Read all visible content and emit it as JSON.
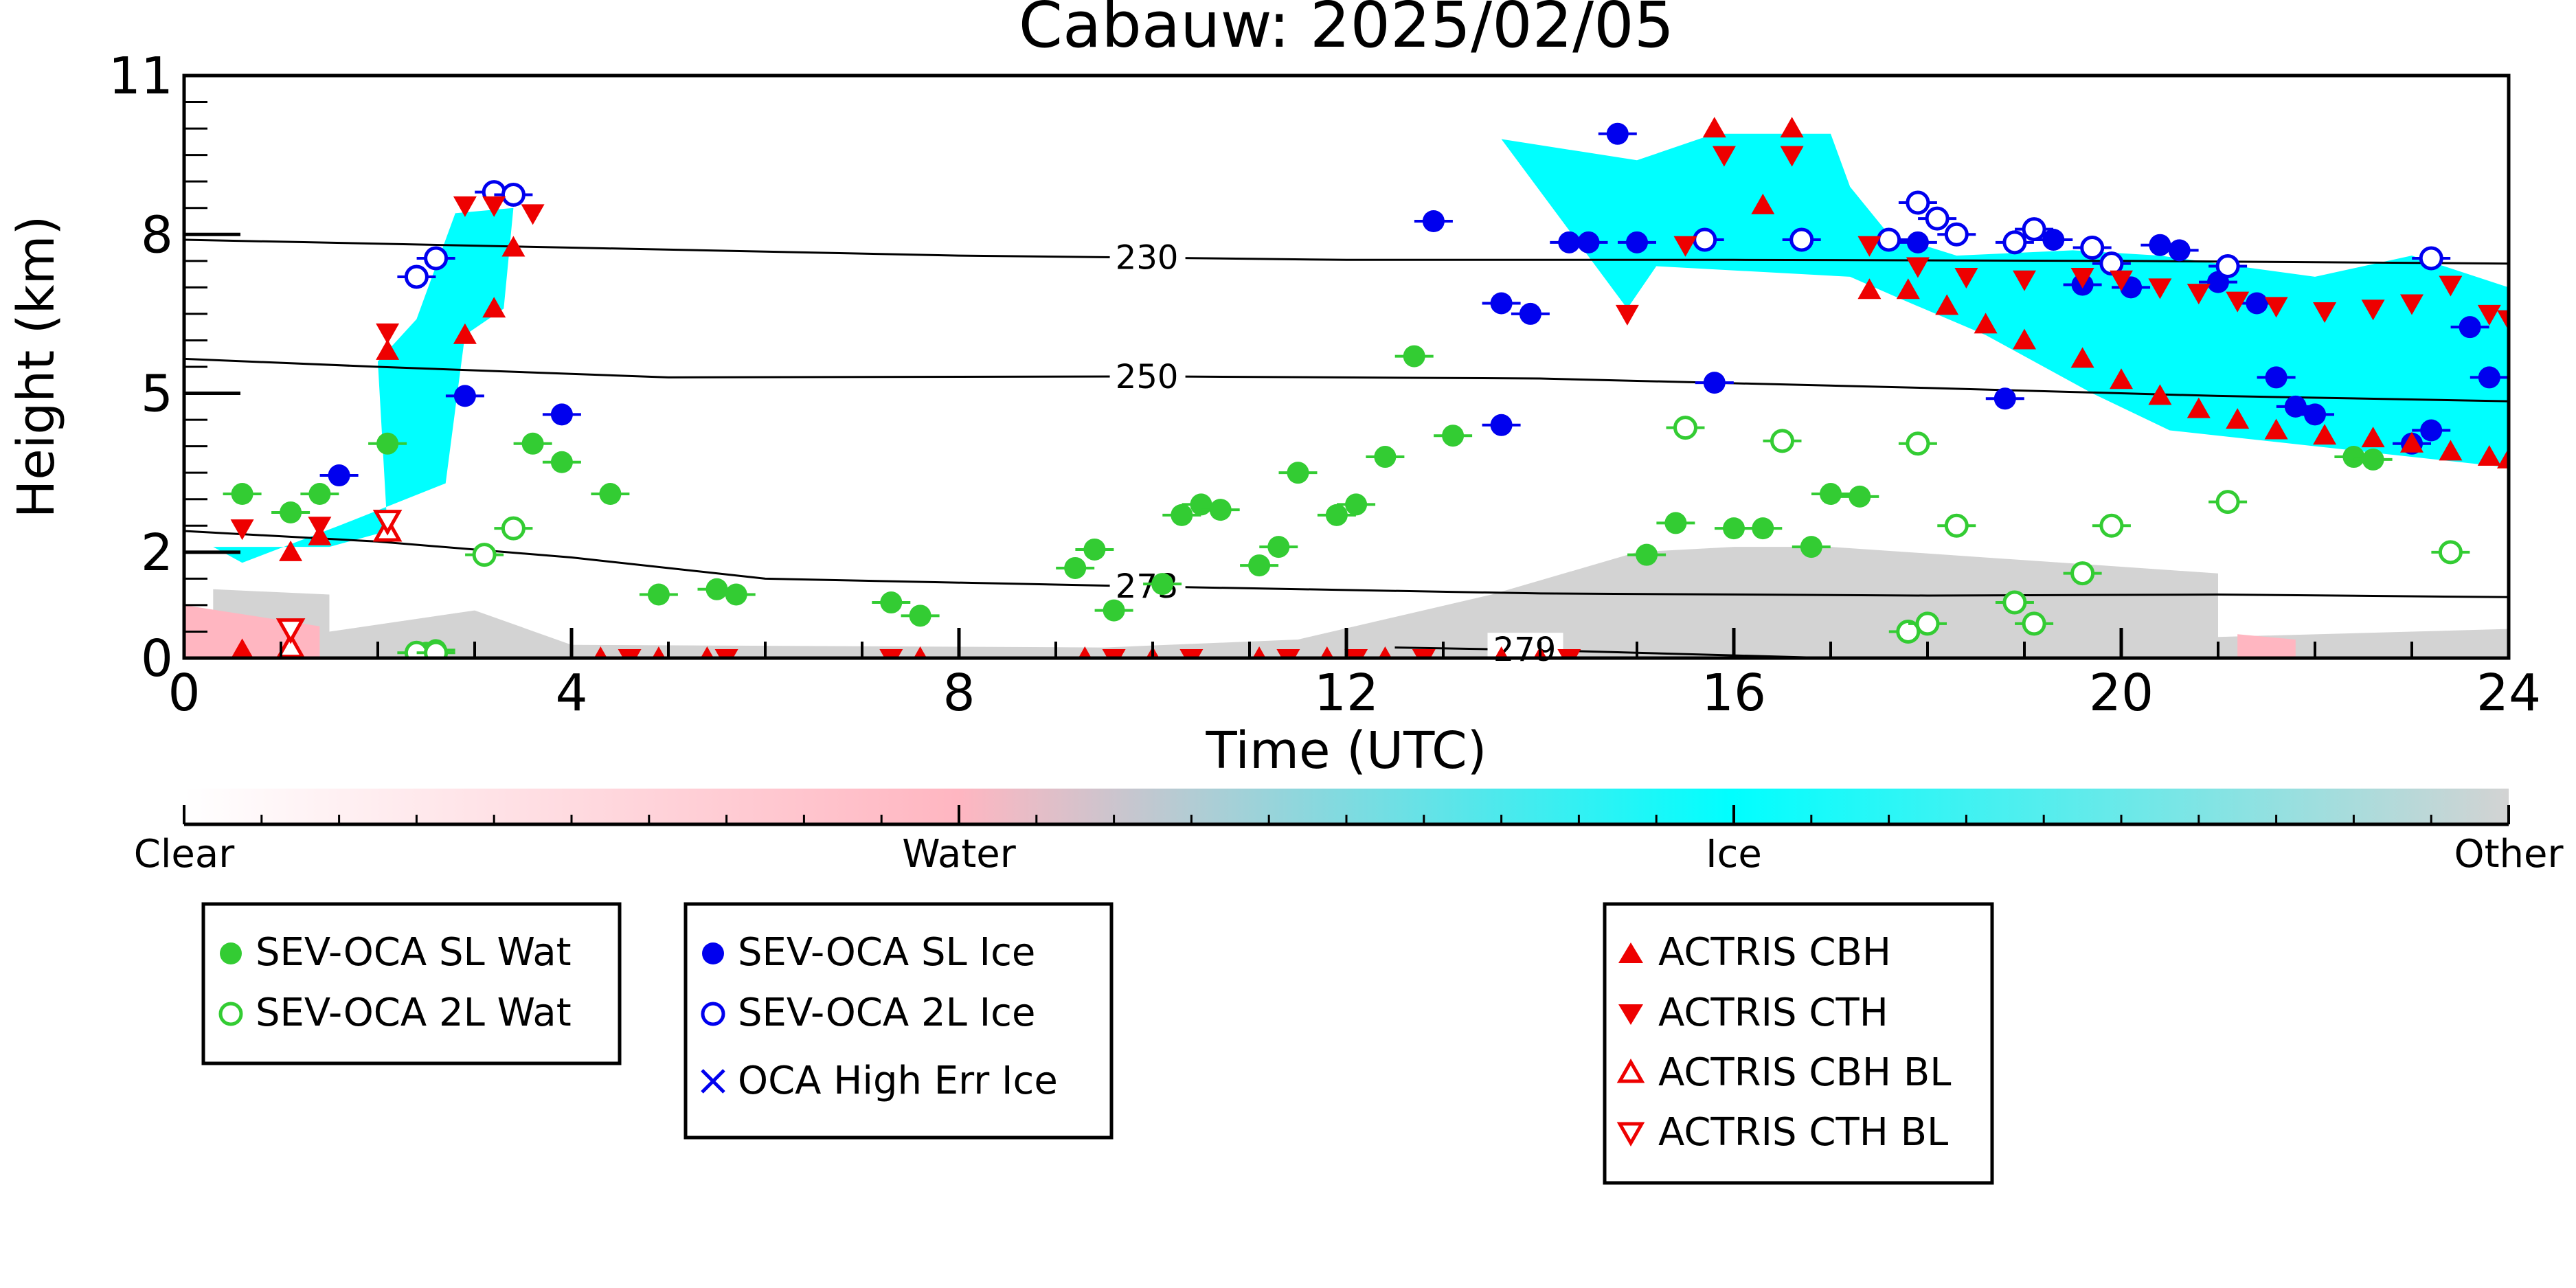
{
  "chart_data": {
    "type": "scatter",
    "title": "Cabauw: 2025/02/05",
    "xlabel": "Time (UTC)",
    "ylabel": "Height (km)",
    "xlim": [
      0,
      24
    ],
    "ylim": [
      0,
      11
    ],
    "x_ticks": [
      0,
      4,
      8,
      12,
      16,
      20,
      24
    ],
    "y_ticks": [
      0,
      2,
      5,
      8,
      11
    ],
    "grid": false,
    "legend_position": "bottom",
    "colorbar": {
      "labels": [
        "Clear",
        "Water",
        "Ice",
        "Other"
      ],
      "colors": [
        "#ffffff",
        "#ffb6c1",
        "#00ffff",
        "#d3d3d3"
      ]
    },
    "contours": [
      {
        "label": "230",
        "label_x": 9.6,
        "points": [
          [
            0,
            7.9
          ],
          [
            4,
            7.75
          ],
          [
            8,
            7.6
          ],
          [
            12,
            7.52
          ],
          [
            16,
            7.52
          ],
          [
            20,
            7.5
          ],
          [
            24,
            7.45
          ]
        ]
      },
      {
        "label": "250",
        "label_x": 9.6,
        "points": [
          [
            0,
            5.65
          ],
          [
            2,
            5.5
          ],
          [
            5,
            5.3
          ],
          [
            10,
            5.32
          ],
          [
            14,
            5.28
          ],
          [
            18,
            5.1
          ],
          [
            21,
            4.95
          ],
          [
            24,
            4.85
          ]
        ]
      },
      {
        "label": "273",
        "label_x": 9.6,
        "points": [
          [
            0,
            2.4
          ],
          [
            2,
            2.2
          ],
          [
            4,
            1.9
          ],
          [
            6,
            1.5
          ],
          [
            10,
            1.35
          ],
          [
            14,
            1.22
          ],
          [
            18,
            1.18
          ],
          [
            21,
            1.2
          ],
          [
            24,
            1.15
          ]
        ]
      },
      {
        "label": "279",
        "label_x": 13.5,
        "points": [
          [
            12.5,
            0.2
          ],
          [
            14,
            0.15
          ],
          [
            16,
            0.05
          ],
          [
            17,
            0
          ]
        ]
      }
    ],
    "series": [
      {
        "name": "SEV-OCA SL Wat",
        "marker": "circle-filled",
        "color": "#33cc33",
        "points": [
          [
            0.6,
            3.1
          ],
          [
            1.1,
            2.75
          ],
          [
            1.4,
            3.1
          ],
          [
            2.1,
            4.05
          ],
          [
            2.5,
            0.1
          ],
          [
            2.6,
            0.15
          ],
          [
            3.6,
            4.05
          ],
          [
            3.9,
            3.7
          ],
          [
            4.4,
            3.1
          ],
          [
            4.9,
            1.2
          ],
          [
            5.5,
            1.3
          ],
          [
            5.7,
            1.2
          ],
          [
            7.3,
            1.05
          ],
          [
            7.6,
            0.8
          ],
          [
            9.2,
            1.7
          ],
          [
            9.4,
            2.05
          ],
          [
            9.6,
            0.9
          ],
          [
            10.1,
            1.4
          ],
          [
            10.3,
            2.7
          ],
          [
            10.5,
            2.9
          ],
          [
            10.7,
            2.8
          ],
          [
            11.1,
            1.75
          ],
          [
            11.3,
            2.1
          ],
          [
            11.5,
            3.5
          ],
          [
            11.9,
            2.7
          ],
          [
            12.1,
            2.9
          ],
          [
            12.4,
            3.8
          ],
          [
            12.7,
            5.7
          ],
          [
            13.1,
            4.2
          ],
          [
            15.1,
            1.95
          ],
          [
            15.4,
            2.55
          ],
          [
            16.0,
            2.45
          ],
          [
            16.3,
            2.45
          ],
          [
            16.8,
            2.1
          ],
          [
            17.0,
            3.1
          ],
          [
            17.3,
            3.05
          ],
          [
            22.4,
            3.8
          ],
          [
            22.6,
            3.75
          ]
        ]
      },
      {
        "name": "SEV-OCA 2L Wat",
        "marker": "circle-open",
        "color": "#33cc33",
        "points": [
          [
            2.4,
            0.1
          ],
          [
            2.6,
            0.1
          ],
          [
            3.1,
            1.95
          ],
          [
            3.4,
            2.45
          ],
          [
            15.5,
            4.35
          ],
          [
            16.5,
            4.1
          ],
          [
            17.9,
            4.05
          ],
          [
            17.8,
            0.5
          ],
          [
            18.0,
            0.65
          ],
          [
            18.3,
            2.5
          ],
          [
            18.9,
            1.05
          ],
          [
            19.1,
            0.65
          ],
          [
            19.6,
            1.6
          ],
          [
            19.9,
            2.5
          ],
          [
            21.1,
            2.95
          ],
          [
            23.4,
            2.0
          ]
        ]
      },
      {
        "name": "SEV-OCA SL Ice",
        "marker": "circle-filled",
        "color": "#0000ee",
        "points": [
          [
            1.6,
            3.45
          ],
          [
            2.9,
            4.95
          ],
          [
            3.9,
            4.6
          ],
          [
            12.9,
            8.25
          ],
          [
            13.6,
            4.4
          ],
          [
            13.6,
            6.7
          ],
          [
            13.9,
            6.5
          ],
          [
            14.3,
            7.85
          ],
          [
            14.5,
            7.85
          ],
          [
            14.8,
            9.9
          ],
          [
            15.0,
            7.85
          ],
          [
            15.8,
            5.2
          ],
          [
            17.9,
            7.85
          ],
          [
            18.8,
            4.9
          ],
          [
            19.3,
            7.9
          ],
          [
            19.6,
            7.05
          ],
          [
            20.1,
            7.0
          ],
          [
            20.4,
            7.8
          ],
          [
            20.6,
            7.7
          ],
          [
            21.0,
            7.1
          ],
          [
            21.4,
            6.7
          ],
          [
            21.6,
            5.3
          ],
          [
            21.8,
            4.75
          ],
          [
            22.0,
            4.6
          ],
          [
            23.0,
            4.05
          ],
          [
            23.2,
            4.3
          ],
          [
            23.6,
            6.25
          ],
          [
            23.8,
            5.3
          ]
        ]
      },
      {
        "name": "SEV-OCA 2L Ice",
        "marker": "circle-open",
        "color": "#0000ee",
        "points": [
          [
            2.4,
            7.2
          ],
          [
            2.6,
            7.55
          ],
          [
            3.2,
            8.8
          ],
          [
            3.4,
            8.75
          ],
          [
            15.7,
            7.9
          ],
          [
            16.7,
            7.9
          ],
          [
            17.6,
            7.9
          ],
          [
            17.9,
            8.6
          ],
          [
            18.1,
            8.3
          ],
          [
            18.3,
            8.0
          ],
          [
            18.9,
            7.85
          ],
          [
            19.1,
            8.1
          ],
          [
            19.7,
            7.75
          ],
          [
            19.9,
            7.45
          ],
          [
            21.1,
            7.4
          ],
          [
            23.2,
            7.55
          ]
        ]
      },
      {
        "name": "OCA High Err Ice",
        "marker": "x",
        "color": "#0000ee",
        "points": []
      },
      {
        "name": "ACTRIS CBH",
        "marker": "triangle-up-filled",
        "color": "#ee0000",
        "points": [
          [
            0.6,
            0.15
          ],
          [
            1.1,
            2.0
          ],
          [
            1.4,
            2.3
          ],
          [
            2.1,
            5.8
          ],
          [
            2.9,
            6.1
          ],
          [
            3.2,
            6.6
          ],
          [
            3.4,
            7.75
          ],
          [
            4.3,
            0
          ],
          [
            4.9,
            0
          ],
          [
            5.4,
            0
          ],
          [
            7.6,
            0
          ],
          [
            9.3,
            0
          ],
          [
            10.0,
            0
          ],
          [
            11.1,
            0
          ],
          [
            11.8,
            0
          ],
          [
            12.4,
            0
          ],
          [
            13.6,
            0
          ],
          [
            14.0,
            0
          ],
          [
            15.8,
            10.0
          ],
          [
            16.6,
            10.0
          ],
          [
            16.3,
            8.55
          ],
          [
            17.4,
            6.95
          ],
          [
            17.8,
            6.95
          ],
          [
            18.2,
            6.65
          ],
          [
            18.6,
            6.3
          ],
          [
            19.0,
            6.0
          ],
          [
            19.6,
            5.65
          ],
          [
            20.0,
            5.25
          ],
          [
            20.4,
            4.95
          ],
          [
            20.8,
            4.7
          ],
          [
            21.2,
            4.5
          ],
          [
            21.6,
            4.3
          ],
          [
            22.1,
            4.2
          ],
          [
            22.6,
            4.15
          ],
          [
            23.0,
            4.05
          ],
          [
            23.4,
            3.9
          ],
          [
            23.8,
            3.8
          ],
          [
            24.0,
            3.75
          ]
        ]
      },
      {
        "name": "ACTRIS CTH",
        "marker": "triangle-down-filled",
        "color": "#ee0000",
        "points": [
          [
            0.6,
            2.45
          ],
          [
            1.4,
            2.5
          ],
          [
            2.1,
            6.15
          ],
          [
            2.9,
            8.55
          ],
          [
            3.2,
            8.55
          ],
          [
            3.6,
            8.4
          ],
          [
            4.6,
            0
          ],
          [
            5.6,
            0
          ],
          [
            7.3,
            0
          ],
          [
            9.6,
            0
          ],
          [
            10.4,
            0
          ],
          [
            11.4,
            0
          ],
          [
            12.1,
            0
          ],
          [
            12.8,
            0
          ],
          [
            14.3,
            0
          ],
          [
            14.9,
            6.5
          ],
          [
            15.5,
            7.8
          ],
          [
            15.9,
            9.5
          ],
          [
            16.6,
            9.5
          ],
          [
            17.4,
            7.8
          ],
          [
            17.9,
            7.4
          ],
          [
            18.4,
            7.2
          ],
          [
            19.0,
            7.15
          ],
          [
            19.6,
            7.2
          ],
          [
            20.0,
            7.15
          ],
          [
            20.4,
            7.0
          ],
          [
            20.8,
            6.9
          ],
          [
            21.2,
            6.75
          ],
          [
            21.6,
            6.65
          ],
          [
            22.1,
            6.55
          ],
          [
            22.6,
            6.6
          ],
          [
            23.0,
            6.7
          ],
          [
            23.4,
            7.05
          ],
          [
            23.8,
            6.5
          ],
          [
            24.0,
            6.4
          ]
        ]
      },
      {
        "name": "ACTRIS CBH BL",
        "marker": "triangle-up-open",
        "color": "#ee0000",
        "points": [
          [
            1.1,
            0.2
          ],
          [
            2.1,
            2.4
          ]
        ]
      },
      {
        "name": "ACTRIS CTH BL",
        "marker": "triangle-down-open",
        "color": "#ee0000",
        "points": [
          [
            1.1,
            0.55
          ],
          [
            2.1,
            2.6
          ]
        ]
      }
    ],
    "ice_regions": [
      [
        [
          0.3,
          2.1
        ],
        [
          1.5,
          2.1
        ],
        [
          2.1,
          2.4
        ],
        [
          2.0,
          5.6
        ],
        [
          2.4,
          6.4
        ],
        [
          2.8,
          8.4
        ],
        [
          3.4,
          8.5
        ],
        [
          3.3,
          6.6
        ],
        [
          2.9,
          6.1
        ],
        [
          2.7,
          3.3
        ],
        [
          1.6,
          2.5
        ],
        [
          0.6,
          1.8
        ]
      ],
      [
        [
          13.6,
          9.8
        ],
        [
          15.0,
          9.4
        ],
        [
          15.8,
          9.9
        ],
        [
          17.0,
          9.9
        ],
        [
          17.2,
          8.9
        ],
        [
          17.6,
          8.0
        ],
        [
          18.3,
          7.6
        ],
        [
          19.5,
          7.7
        ],
        [
          20.4,
          7.6
        ],
        [
          22.0,
          7.2
        ],
        [
          23.0,
          7.6
        ],
        [
          24.0,
          7.0
        ],
        [
          24.0,
          3.6
        ],
        [
          22.0,
          4.0
        ],
        [
          20.5,
          4.3
        ],
        [
          19.7,
          5.0
        ],
        [
          18.6,
          6.1
        ],
        [
          17.7,
          6.8
        ],
        [
          17.2,
          7.2
        ],
        [
          15.2,
          7.4
        ],
        [
          14.9,
          6.6
        ]
      ]
    ],
    "other_regions": [
      [
        [
          0.3,
          0
        ],
        [
          0.3,
          1.3
        ],
        [
          1.5,
          1.2
        ],
        [
          1.5,
          0.5
        ],
        [
          3.0,
          0.9
        ],
        [
          4.0,
          0.25
        ],
        [
          9.5,
          0.2
        ],
        [
          11.5,
          0.35
        ],
        [
          13.5,
          1.2
        ],
        [
          15.0,
          2.0
        ],
        [
          16.0,
          2.1
        ],
        [
          17.0,
          2.1
        ],
        [
          21.0,
          1.6
        ],
        [
          21.0,
          0.4
        ],
        [
          23.0,
          0.5
        ],
        [
          24.0,
          0.55
        ],
        [
          24.0,
          0
        ]
      ]
    ],
    "water_regions": [
      [
        [
          0,
          0
        ],
        [
          0,
          1.0
        ],
        [
          0.7,
          0.8
        ],
        [
          1.4,
          0.6
        ],
        [
          1.4,
          0
        ]
      ],
      [
        [
          21.2,
          0
        ],
        [
          21.2,
          0.45
        ],
        [
          21.8,
          0.35
        ],
        [
          21.8,
          0
        ]
      ]
    ]
  }
}
